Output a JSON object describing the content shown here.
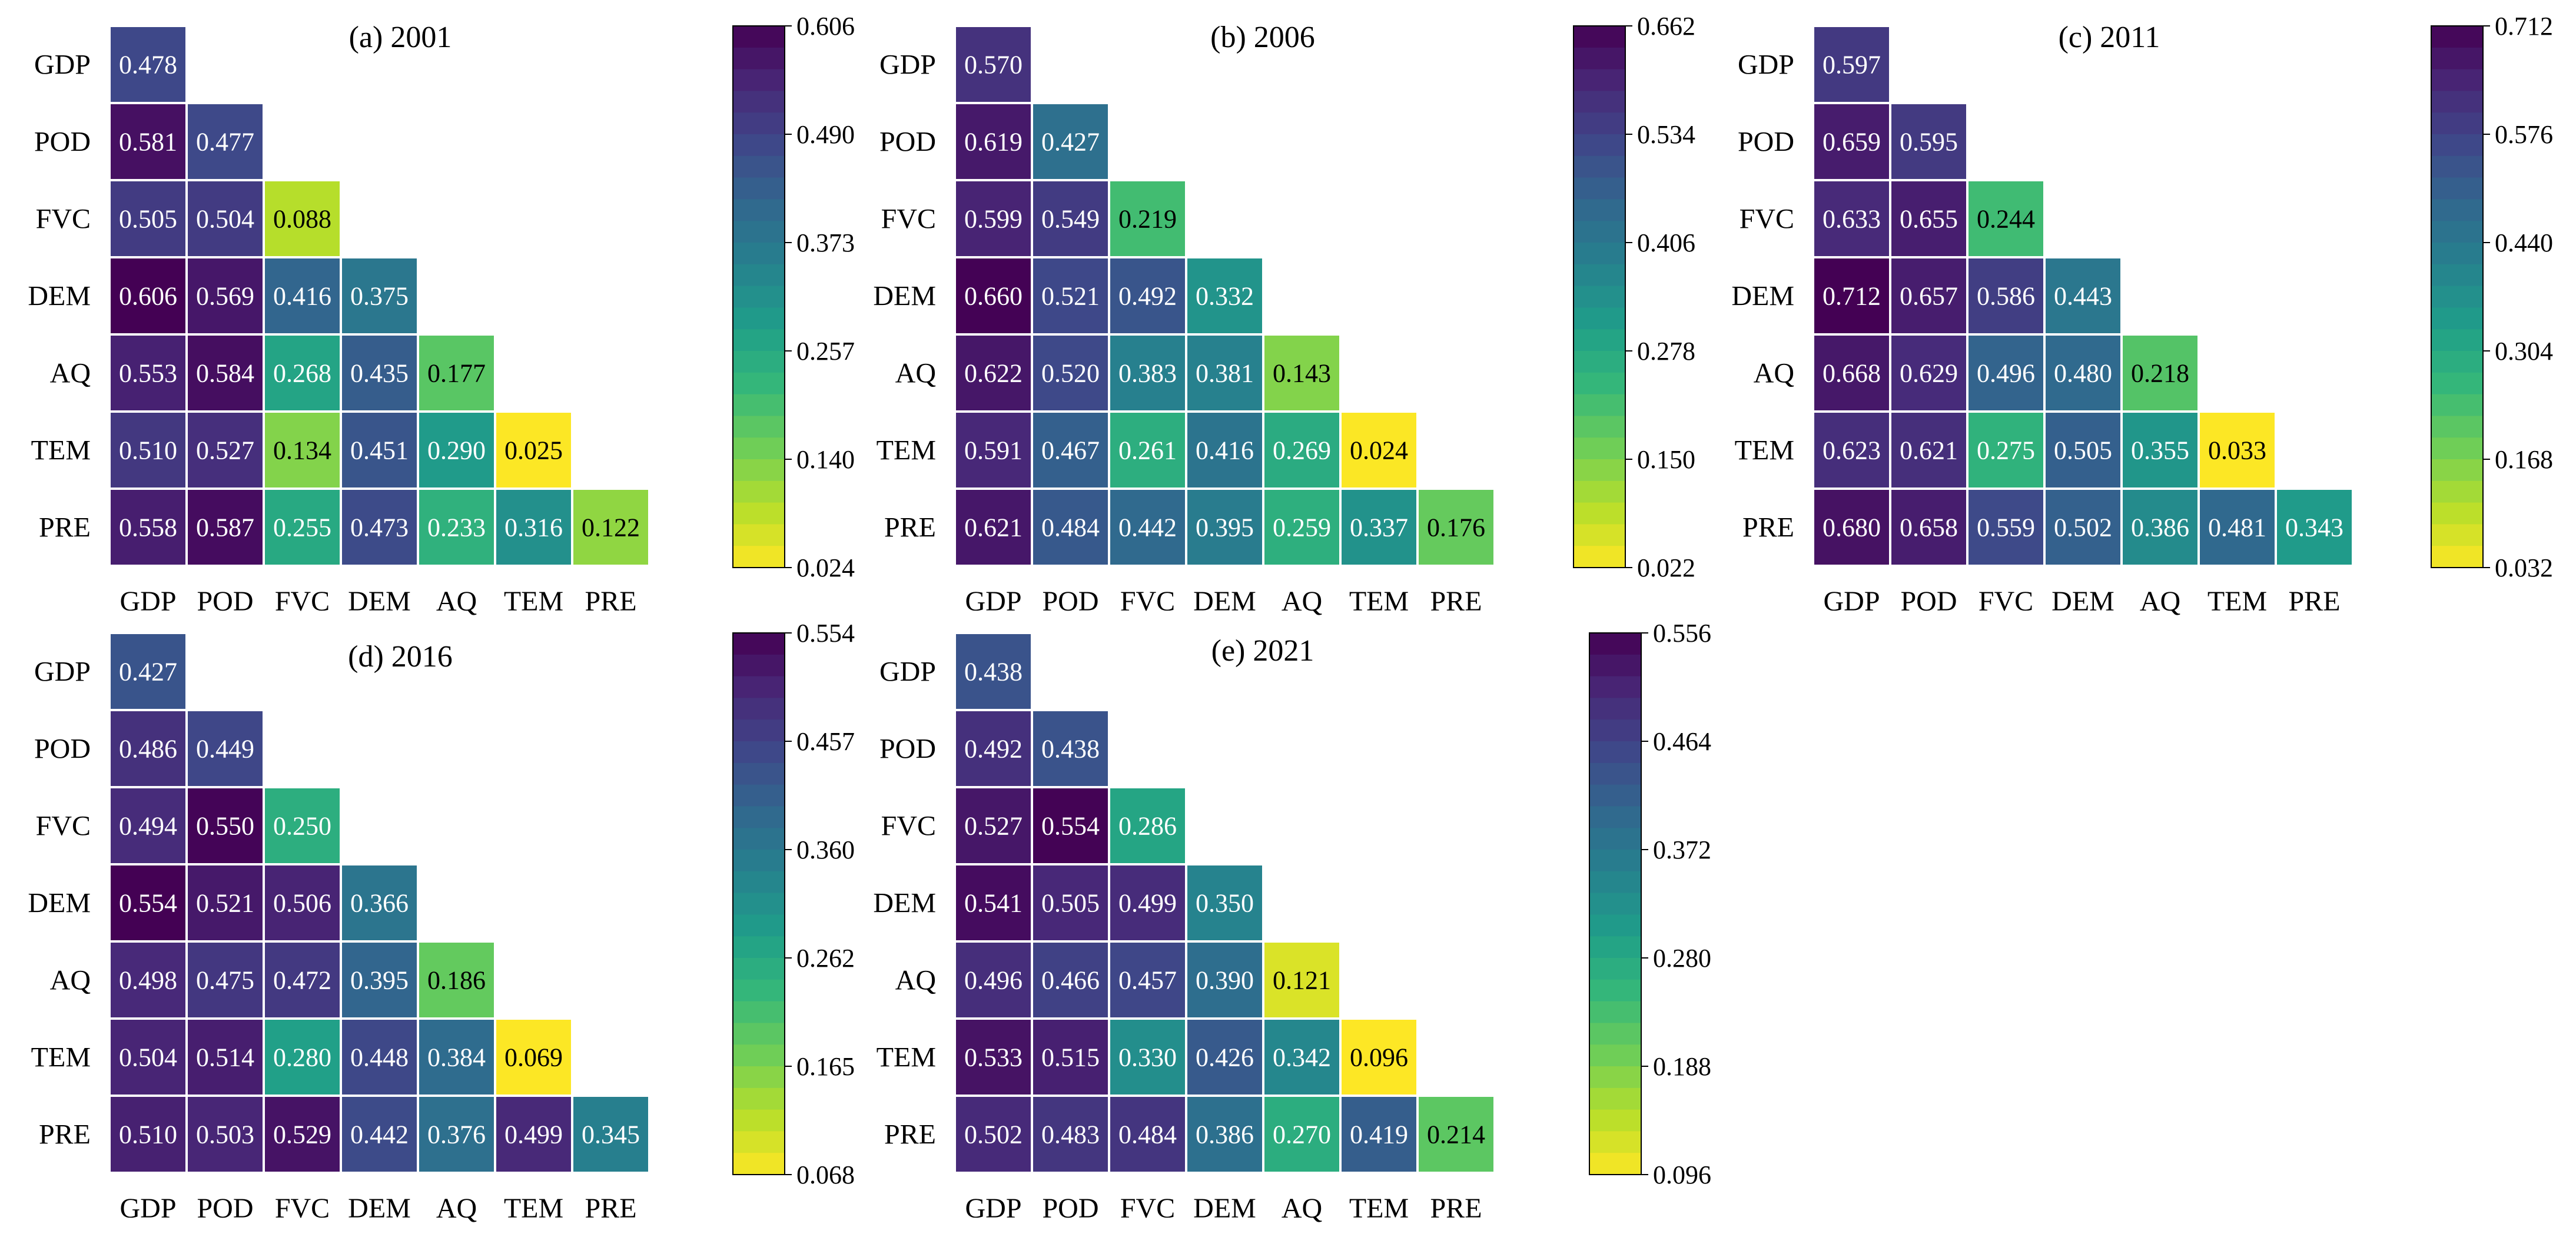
{
  "variables": [
    "GDP",
    "POD",
    "FVC",
    "DEM",
    "AQ",
    "TEM",
    "PRE"
  ],
  "chart_data": [
    {
      "type": "heatmap",
      "title": "(a) 2001",
      "matrix": [
        [
          0.478
        ],
        [
          0.581,
          0.477
        ],
        [
          0.505,
          0.504,
          0.088
        ],
        [
          0.606,
          0.569,
          0.416,
          0.375
        ],
        [
          0.553,
          0.584,
          0.268,
          0.435,
          0.177
        ],
        [
          0.51,
          0.527,
          0.134,
          0.451,
          0.29,
          0.025
        ],
        [
          0.558,
          0.587,
          0.255,
          0.473,
          0.233,
          0.316,
          0.122
        ]
      ],
      "colorbar": {
        "min": 0.024,
        "max": 0.606,
        "ticks": [
          "0.606",
          "0.490",
          "0.373",
          "0.257",
          "0.140",
          "0.024"
        ]
      }
    },
    {
      "type": "heatmap",
      "title": "(b) 2006",
      "matrix": [
        [
          0.57
        ],
        [
          0.619,
          0.427
        ],
        [
          0.599,
          0.549,
          0.219
        ],
        [
          0.66,
          0.521,
          0.492,
          0.332
        ],
        [
          0.622,
          0.52,
          0.383,
          0.381,
          0.143
        ],
        [
          0.591,
          0.467,
          0.261,
          0.416,
          0.269,
          0.024
        ],
        [
          0.621,
          0.484,
          0.442,
          0.395,
          0.259,
          0.337,
          0.176
        ]
      ],
      "colorbar": {
        "min": 0.022,
        "max": 0.662,
        "ticks": [
          "0.662",
          "0.534",
          "0.406",
          "0.278",
          "0.150",
          "0.022"
        ]
      }
    },
    {
      "type": "heatmap",
      "title": "(c) 2011",
      "matrix": [
        [
          0.597
        ],
        [
          0.659,
          0.595
        ],
        [
          0.633,
          0.655,
          0.244
        ],
        [
          0.712,
          0.657,
          0.586,
          0.443
        ],
        [
          0.668,
          0.629,
          0.496,
          0.48,
          0.218
        ],
        [
          0.623,
          0.621,
          0.275,
          0.505,
          0.355,
          0.033
        ],
        [
          0.68,
          0.658,
          0.559,
          0.502,
          0.386,
          0.481,
          0.343
        ]
      ],
      "colorbar": {
        "min": 0.032,
        "max": 0.712,
        "ticks": [
          "0.712",
          "0.576",
          "0.440",
          "0.304",
          "0.168",
          "0.032"
        ]
      }
    },
    {
      "type": "heatmap",
      "title": "(d) 2016",
      "matrix": [
        [
          0.427
        ],
        [
          0.486,
          0.449
        ],
        [
          0.494,
          0.55,
          0.25
        ],
        [
          0.554,
          0.521,
          0.506,
          0.366
        ],
        [
          0.498,
          0.475,
          0.472,
          0.395,
          0.186
        ],
        [
          0.504,
          0.514,
          0.28,
          0.448,
          0.384,
          0.069
        ],
        [
          0.51,
          0.503,
          0.529,
          0.442,
          0.376,
          0.499,
          0.345
        ]
      ],
      "colorbar": {
        "min": 0.068,
        "max": 0.554,
        "ticks": [
          "0.554",
          "0.457",
          "0.360",
          "0.262",
          "0.165",
          "0.068"
        ]
      }
    },
    {
      "type": "heatmap",
      "title": "(e) 2021",
      "matrix": [
        [
          0.438
        ],
        [
          0.492,
          0.438
        ],
        [
          0.527,
          0.554,
          0.286
        ],
        [
          0.541,
          0.505,
          0.499,
          0.35
        ],
        [
          0.496,
          0.466,
          0.457,
          0.39,
          0.121
        ],
        [
          0.533,
          0.515,
          0.33,
          0.426,
          0.342,
          0.096
        ],
        [
          0.502,
          0.483,
          0.484,
          0.386,
          0.27,
          0.419,
          0.214
        ]
      ],
      "colorbar": {
        "min": 0.096,
        "max": 0.556,
        "ticks": [
          "0.556",
          "0.464",
          "0.372",
          "0.280",
          "0.188",
          "0.096"
        ]
      }
    }
  ]
}
